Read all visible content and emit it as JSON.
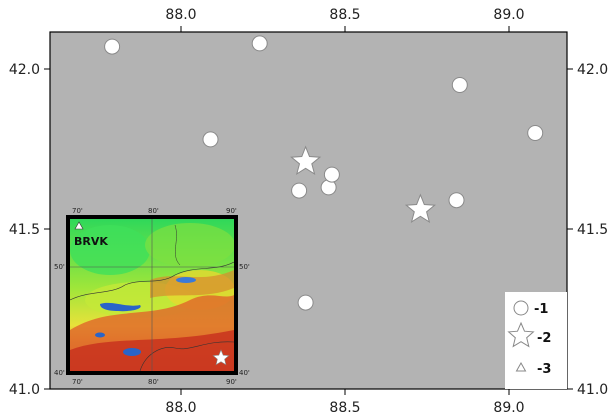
{
  "map": {
    "top_ticks": [
      "88.0",
      "88.5",
      "89.0"
    ],
    "bottom_ticks": [
      "88.0",
      "88.5",
      "89.0"
    ],
    "left_ticks": [
      "42.0",
      "41.5",
      "41.0"
    ],
    "right_ticks": [
      "42.0",
      "41.5",
      "41.0"
    ],
    "x_ticks_values": [
      88.0,
      88.5,
      89.0
    ],
    "y_ticks_values": [
      42.0,
      41.5,
      41.0
    ],
    "background_color": "#b3b3b3",
    "circles": [
      {
        "lon": 87.79,
        "lat": 42.07
      },
      {
        "lon": 88.24,
        "lat": 42.08
      },
      {
        "lon": 88.09,
        "lat": 41.78
      },
      {
        "lon": 88.85,
        "lat": 41.95
      },
      {
        "lon": 89.08,
        "lat": 41.8
      },
      {
        "lon": 88.36,
        "lat": 41.62
      },
      {
        "lon": 88.45,
        "lat": 41.63
      },
      {
        "lon": 88.46,
        "lat": 41.67
      },
      {
        "lon": 88.84,
        "lat": 41.59
      },
      {
        "lon": 88.38,
        "lat": 41.27
      }
    ],
    "stars": [
      {
        "lon": 88.38,
        "lat": 41.71
      },
      {
        "lon": 88.73,
        "lat": 41.56
      }
    ]
  },
  "inset": {
    "station_label": "BRVK",
    "top_ticks": [
      "70",
      "80",
      "90"
    ],
    "bottom_ticks": [
      "70",
      "80",
      "90"
    ],
    "left_ticks": [
      "50",
      "40"
    ],
    "right_ticks": [
      "50",
      "40"
    ],
    "tick_suffix": "'"
  },
  "legend": {
    "items": [
      {
        "symbol": "circle-icon",
        "label": "-1"
      },
      {
        "symbol": "star-icon",
        "label": "-2"
      },
      {
        "symbol": "triangle-icon",
        "label": "-3"
      }
    ]
  }
}
